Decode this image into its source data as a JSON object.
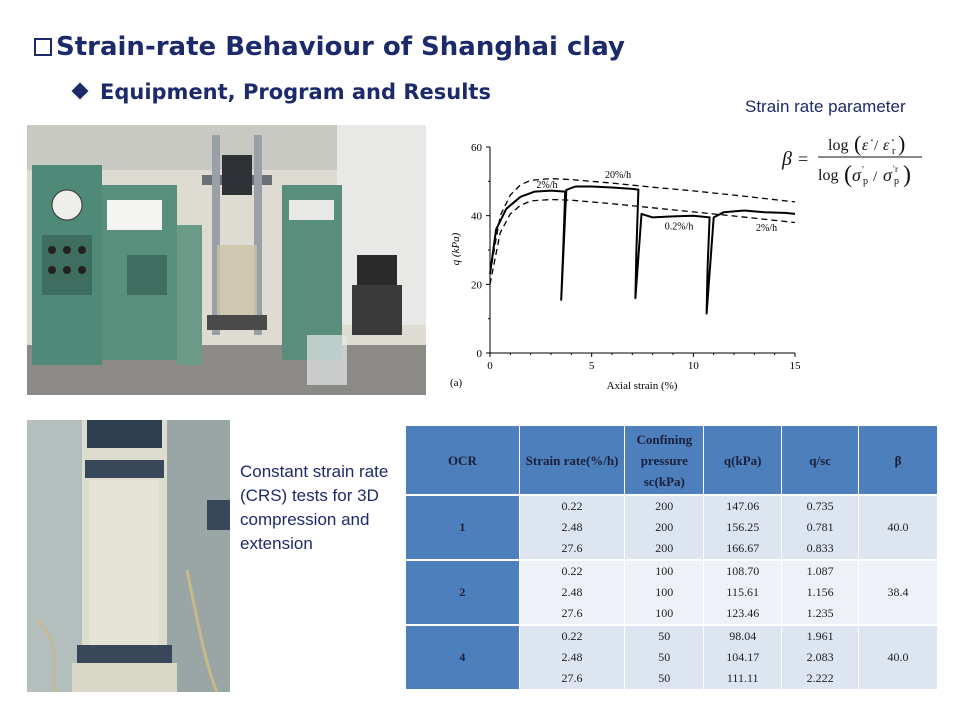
{
  "slide": {
    "title": "Strain-rate Behaviour of Shanghai clay",
    "subtitle": "Equipment, Program and Results",
    "strain_rate_label": "Strain rate parameter",
    "caption": "Constant strain rate (CRS) tests for 3D compression and extension"
  },
  "chart_data": {
    "type": "line",
    "xlabel": "Axial strain (%)",
    "ylabel": "q (kPa)",
    "xlim": [
      0,
      15
    ],
    "ylim": [
      0,
      60
    ],
    "xticks": [
      0,
      5,
      10,
      15
    ],
    "yticks": [
      0,
      20,
      40,
      60
    ],
    "panel_label": "(a)",
    "annotations": [
      {
        "text": "2%/h",
        "x": 2.8,
        "y": 48
      },
      {
        "text": "20%/h",
        "x": 6.3,
        "y": 51
      },
      {
        "text": "0.2%/h",
        "x": 9.3,
        "y": 36
      },
      {
        "text": "2%/h",
        "x": 13.6,
        "y": 35.5
      }
    ],
    "series": [
      {
        "style": "solid",
        "x": [
          0,
          0.3,
          0.8,
          1.5,
          2.2,
          3.0,
          3.7,
          3.6,
          3.5,
          3.75,
          4.2,
          5.0,
          6.0,
          7.0,
          7.3,
          7.2,
          7.15,
          7.45,
          8.0,
          9.0,
          10.0,
          10.8,
          10.7,
          10.65,
          11.0,
          11.5,
          12.5,
          13.5,
          14.5,
          15.0
        ],
        "y": [
          23,
          36,
          42,
          45.5,
          47,
          47.3,
          47,
          30,
          15.5,
          47.5,
          48.5,
          48.5,
          48.2,
          47.8,
          47.6,
          30,
          16,
          40.5,
          39.5,
          39.8,
          40,
          39.5,
          25,
          11.5,
          39.5,
          41,
          41.5,
          41,
          40.8,
          40.5
        ]
      },
      {
        "style": "dashed",
        "x": [
          0,
          0.5,
          1.0,
          1.5,
          2.0,
          3.0,
          4.0,
          6.0,
          8.0,
          10.0,
          12.0,
          15.0
        ],
        "y": [
          23,
          40,
          46,
          49,
          50.3,
          50.8,
          50.5,
          49.5,
          48.3,
          47.2,
          46,
          44
        ]
      },
      {
        "style": "dashed",
        "x": [
          0,
          0.5,
          1.0,
          1.5,
          2.0,
          3.0,
          4.0,
          6.0,
          8.0,
          10.0,
          12.0,
          15.0
        ],
        "y": [
          20,
          35,
          40.5,
          43,
          44.3,
          44.7,
          44.5,
          43.5,
          42.3,
          41.1,
          39.9,
          38
        ]
      }
    ]
  },
  "table": {
    "headers": [
      "OCR",
      "Strain rate(%/h)",
      "Confining pressure sc(kPa)",
      "q(kPa)",
      "q/sc",
      "β"
    ],
    "groups": [
      {
        "ocr": "1",
        "beta": "40.0",
        "rows": [
          {
            "rate": "0.22",
            "conf": "200",
            "q": "147.06",
            "ratio": "0.735"
          },
          {
            "rate": "2.48",
            "conf": "200",
            "q": "156.25",
            "ratio": "0.781"
          },
          {
            "rate": "27.6",
            "conf": "200",
            "q": "166.67",
            "ratio": "0.833"
          }
        ]
      },
      {
        "ocr": "2",
        "beta": "38.4",
        "rows": [
          {
            "rate": "0.22",
            "conf": "100",
            "q": "108.70",
            "ratio": "1.087"
          },
          {
            "rate": "2.48",
            "conf": "100",
            "q": "115.61",
            "ratio": "1.156"
          },
          {
            "rate": "27.6",
            "conf": "100",
            "q": "123.46",
            "ratio": "1.235"
          }
        ]
      },
      {
        "ocr": "4",
        "beta": "40.0",
        "rows": [
          {
            "rate": "0.22",
            "conf": "50",
            "q": "98.04",
            "ratio": "1.961"
          },
          {
            "rate": "2.48",
            "conf": "50",
            "q": "104.17",
            "ratio": "2.083"
          },
          {
            "rate": "27.6",
            "conf": "50",
            "q": "111.11",
            "ratio": "2.222"
          }
        ]
      }
    ]
  }
}
